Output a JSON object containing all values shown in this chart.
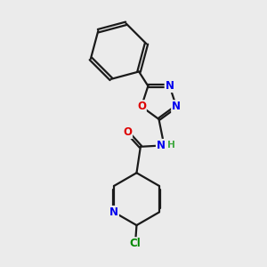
{
  "bg_color": "#ebebeb",
  "bond_color": "#1a1a1a",
  "bond_width": 1.6,
  "atom_colors": {
    "N": "#0000ee",
    "O": "#dd0000",
    "Cl": "#008800",
    "H": "#44aa44",
    "C": "#1a1a1a"
  },
  "font_size_atom": 8.5,
  "fig_size": [
    3.0,
    3.0
  ]
}
